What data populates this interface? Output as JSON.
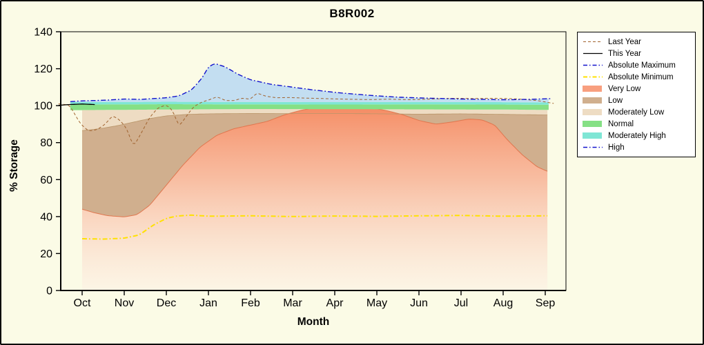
{
  "colors": {
    "figure_bg": "#fbfbe6",
    "plot_frame": "#000000",
    "legend_bg": "#ffffff"
  },
  "chart_data": {
    "type": "area",
    "title": "B8R002",
    "xlabel": "Month",
    "ylabel": "% Storage",
    "ylim": [
      0,
      140
    ],
    "yticks": [
      0,
      20,
      40,
      60,
      80,
      100,
      120,
      140
    ],
    "months": [
      "Oct",
      "Nov",
      "Dec",
      "Jan",
      "Feb",
      "Mar",
      "Apr",
      "May",
      "Jun",
      "Jul",
      "Aug",
      "Sep"
    ],
    "x_unit": "month_index_from_Oct",
    "curves": {
      "absolute_maximum": {
        "x": [
          -0.28,
          0,
          0.6,
          1,
          1.4,
          2,
          2.3,
          2.6,
          2.85,
          3.0,
          3.15,
          3.4,
          3.7,
          4,
          4.5,
          5,
          5.5,
          6,
          6.5,
          7,
          7.5,
          8,
          9,
          10,
          10.6,
          11.15
        ],
        "y": [
          102.2,
          102.6,
          103,
          103.6,
          103.4,
          104.3,
          105.3,
          108.5,
          115,
          121,
          122.8,
          121,
          117,
          114,
          111.5,
          110,
          108.5,
          107.2,
          106.2,
          105.3,
          104.6,
          104.2,
          103.6,
          103.2,
          103.4,
          103.8
        ]
      },
      "absolute_minimum": {
        "x": [
          0,
          0.5,
          1,
          1.35,
          1.7,
          2,
          2.25,
          2.6,
          3,
          4,
          5,
          6,
          7,
          8,
          9,
          10,
          11.05
        ],
        "y": [
          28,
          27.8,
          28.3,
          30,
          35.5,
          39,
          40.3,
          40.8,
          40.2,
          40.4,
          40,
          40.3,
          40.1,
          40.4,
          40.6,
          40.2,
          40.4
        ]
      },
      "last_year": {
        "x": [
          -0.56,
          -0.3,
          -0.05,
          0.15,
          0.35,
          0.55,
          0.72,
          0.88,
          1.05,
          1.22,
          1.4,
          1.6,
          1.8,
          2.0,
          2.15,
          2.3,
          2.45,
          2.65,
          2.85,
          3.05,
          3.2,
          3.4,
          3.6,
          3.8,
          4.0,
          4.15,
          4.35,
          4.6,
          4.9,
          5.3,
          5.8,
          6.3,
          6.8,
          7.3,
          7.8,
          8.3,
          8.8,
          9.3,
          9.8,
          10.3,
          10.8,
          11.2
        ],
        "y": [
          101,
          100.3,
          90.5,
          86.2,
          87,
          90,
          94.6,
          92.5,
          88,
          77.8,
          85,
          93.5,
          98.8,
          100.4,
          97.5,
          88.6,
          93.5,
          99.5,
          102,
          103.4,
          104.9,
          102.8,
          102.7,
          104.1,
          103.5,
          106.9,
          105.2,
          104.3,
          104.4,
          104.1,
          103.8,
          103.5,
          103.3,
          103.5,
          103.2,
          103.6,
          104,
          103.9,
          104,
          103.7,
          102.8,
          101.2
        ]
      },
      "this_year": {
        "x": [
          -0.56,
          -0.3,
          0,
          0.3
        ],
        "y": [
          100.2,
          100.6,
          100.9,
          100.6
        ]
      },
      "very_low_top": {
        "x": [
          0,
          0.3,
          0.6,
          1,
          1.3,
          1.6,
          2,
          2.4,
          2.8,
          3.2,
          3.6,
          4,
          4.4,
          4.8,
          5.2,
          5.6,
          6,
          6.4,
          6.8,
          7.2,
          7.6,
          8,
          8.4,
          8.8,
          9.2,
          9.5,
          9.8,
          10.1,
          10.45,
          10.8,
          11.05
        ],
        "y": [
          44,
          42,
          40.5,
          39.8,
          41,
          46,
          57,
          68,
          77.5,
          84,
          87.5,
          89.5,
          91.5,
          95,
          97.5,
          99.2,
          100,
          99.8,
          99,
          97.5,
          95.2,
          92,
          90,
          91.2,
          92.8,
          92.3,
          89.5,
          81.5,
          73.5,
          67,
          64.5
        ]
      },
      "low_top": {
        "x": [
          0,
          0.4,
          0.8,
          1.2,
          1.6,
          2,
          2.5,
          3,
          4,
          5,
          6,
          7,
          8,
          9,
          10,
          11.05
        ],
        "y": [
          86.5,
          87.5,
          89,
          91,
          93,
          94.5,
          95.3,
          95.6,
          95.8,
          95.7,
          95.8,
          95.6,
          95.4,
          95.6,
          95.3,
          95
        ]
      },
      "moderately_low_top": {
        "x": [
          0,
          2,
          4,
          6,
          8,
          10,
          11.05
        ],
        "y": [
          97.6,
          97.9,
          98.2,
          98.1,
          98,
          97.9,
          97.7
        ]
      },
      "normal_top": {
        "x": [
          -0.28,
          2,
          4,
          6,
          8,
          10,
          11.08
        ],
        "y": [
          100.6,
          100.8,
          100.7,
          100.6,
          100.7,
          100.6,
          100.5
        ]
      },
      "moderately_high_top": {
        "x": [
          -0.28,
          2,
          4,
          6,
          8,
          10,
          11.08
        ],
        "y": [
          101.9,
          102.1,
          102,
          101.9,
          102,
          101.9,
          101.8
        ]
      }
    },
    "bands": [
      {
        "name": "moderately-low",
        "layer": 1,
        "bottom": "low_top",
        "top": "moderately_low_top",
        "fill": "#eedcc3",
        "range": [
          0,
          11.05
        ]
      },
      {
        "name": "low",
        "layer": 1,
        "bottom": "very_low_top",
        "top": "low_top",
        "clamp_top": true,
        "fill": "#d0af8e",
        "range": [
          0,
          11.05
        ]
      },
      {
        "name": "very-low",
        "layer": 1,
        "bottom": 0,
        "top": "very_low_top",
        "fill": "gradient:very_low",
        "range": [
          0,
          11.05
        ]
      },
      {
        "name": "normal",
        "layer": 2,
        "bottom": "moderately_low_top",
        "top": "normal_top",
        "fill": "#85e085",
        "range": [
          -0.28,
          11.08
        ]
      },
      {
        "name": "moderately-high",
        "layer": 2,
        "bottom": "normal_top",
        "top": "moderately_high_top",
        "fill": "#7fe6d5",
        "range": [
          -0.28,
          11.08
        ]
      },
      {
        "name": "high",
        "layer": 2,
        "bottom": "moderately_high_top",
        "top": "absolute_maximum",
        "fill": "#c3def1",
        "range": [
          -0.28,
          11.08
        ]
      }
    ],
    "boundaries": [
      {
        "name": "very-low-top-line",
        "curve": "very_low_top",
        "color": "#e0764e",
        "width": 1
      },
      {
        "name": "low-top-line",
        "curve": "low_top",
        "color": "#b99569",
        "width": 0.8
      }
    ],
    "lines": [
      {
        "name": "absolute-minimum-line",
        "curve": "absolute_minimum",
        "color": "#ffe100",
        "width": 2,
        "dash": "7,3,1.8,3"
      },
      {
        "name": "last-year-line",
        "curve": "last_year",
        "color": "#a0622d",
        "width": 1,
        "dash": "4,3"
      },
      {
        "name": "this-year-line",
        "curve": "this_year",
        "color": "#000000",
        "width": 1.3,
        "dash": ""
      },
      {
        "name": "absolute-maximum-line",
        "curve": "absolute_maximum",
        "color": "#1111cc",
        "width": 1.4,
        "dash": "7,3,1.8,3"
      }
    ],
    "legend": [
      {
        "label": "Last Year",
        "swatch": "line",
        "dash": "4,3",
        "color": "#a0622d",
        "width": 1
      },
      {
        "label": "This Year",
        "swatch": "line",
        "dash": "",
        "color": "#000000",
        "width": 1.3
      },
      {
        "label": "Absolute Maximum",
        "swatch": "line",
        "dash": "6,3,1.5,3",
        "color": "#1111cc",
        "width": 1.4
      },
      {
        "label": "Absolute Minimum",
        "swatch": "line",
        "dash": "6,3,1.5,3",
        "color": "#ffe100",
        "width": 2
      },
      {
        "label": "Very Low",
        "swatch": "patch",
        "color": "#f89f7f"
      },
      {
        "label": "Low",
        "swatch": "patch",
        "color": "#d0af8e"
      },
      {
        "label": "Moderately Low",
        "swatch": "patch",
        "color": "#eedcc3"
      },
      {
        "label": "Normal",
        "swatch": "patch",
        "color": "#85e085"
      },
      {
        "label": "Moderately High",
        "swatch": "patch",
        "color": "#7fe6d5"
      },
      {
        "label": "High",
        "swatch": "line",
        "dash": "6,3,1.5,3",
        "color": "#1111cc",
        "width": 1.4
      }
    ]
  }
}
